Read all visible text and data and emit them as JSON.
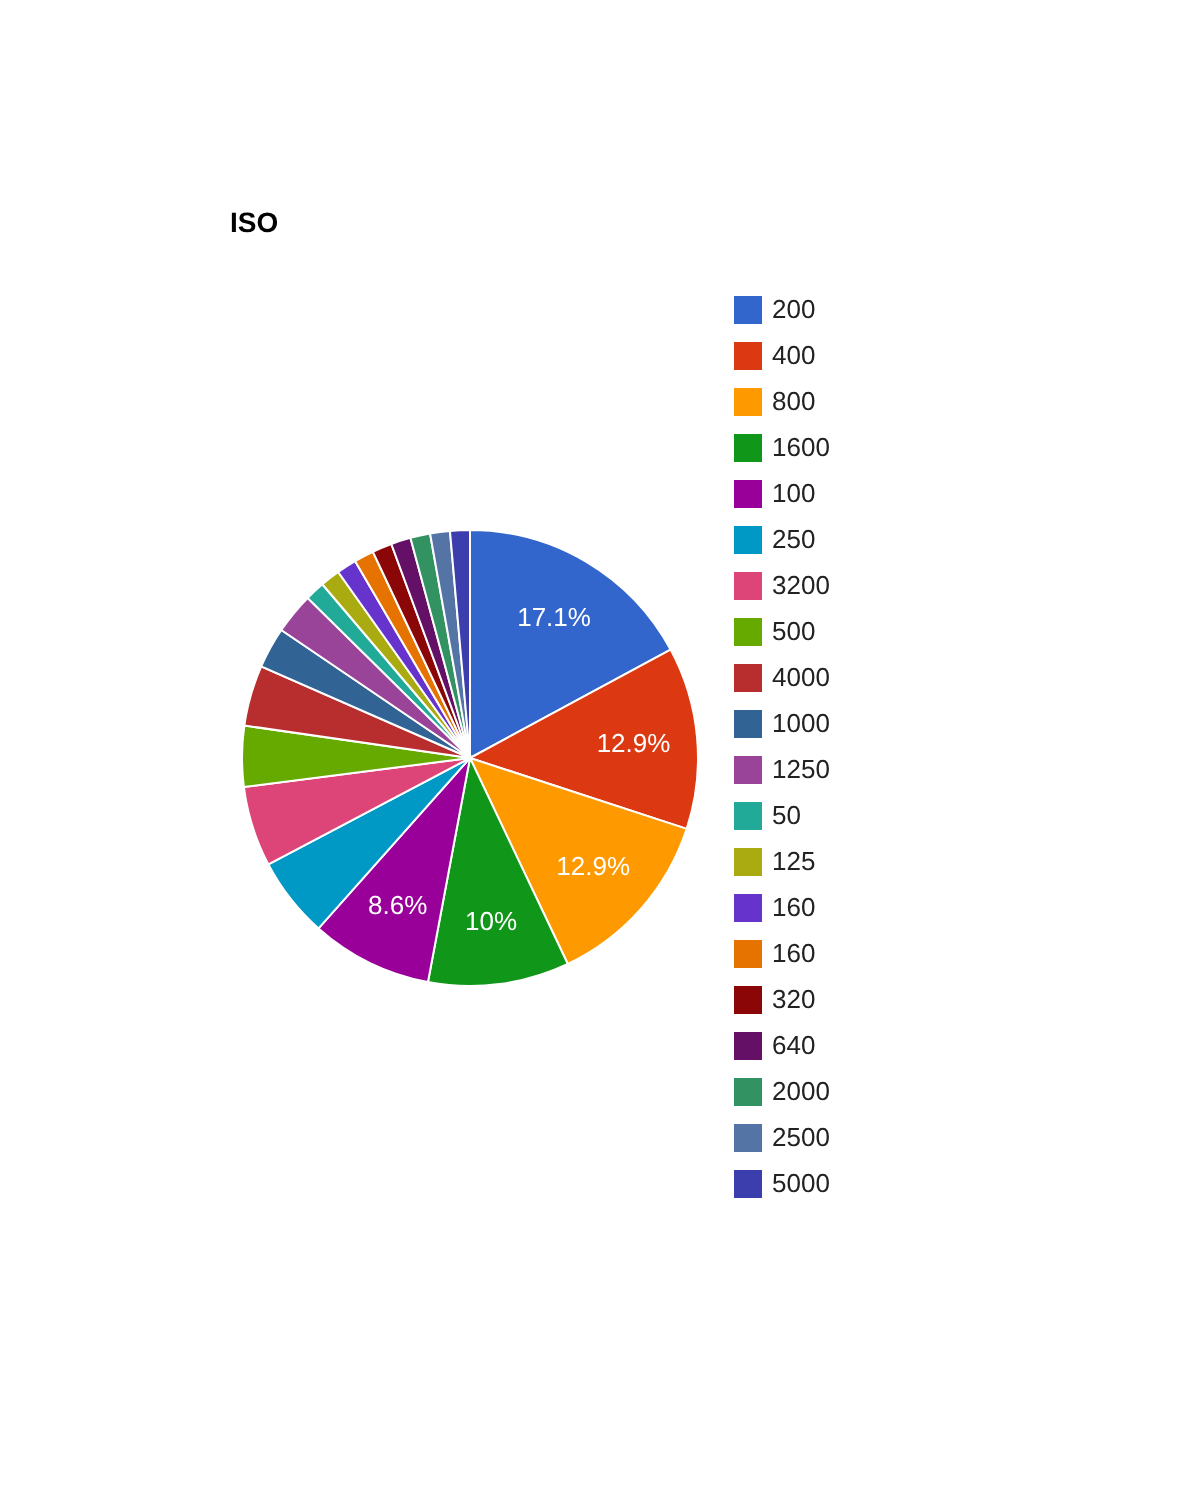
{
  "chart_data": {
    "type": "pie",
    "title": "ISO",
    "categories": [
      "200",
      "400",
      "800",
      "1600",
      "100",
      "250",
      "3200",
      "500",
      "4000",
      "1000",
      "1250",
      "50",
      "125",
      "160",
      "160",
      "320",
      "640",
      "2000",
      "2500",
      "5000"
    ],
    "values": [
      17.1,
      12.9,
      12.9,
      10,
      8.6,
      5.7,
      5.7,
      4.3,
      4.3,
      2.9,
      2.9,
      1.4,
      1.4,
      1.4,
      1.4,
      1.4,
      1.4,
      1.4,
      1.4,
      1.4
    ],
    "value_labels": [
      "17.1%",
      "12.9%",
      "12.9%",
      "10%",
      "8.6%",
      null,
      null,
      null,
      null,
      null,
      null,
      null,
      null,
      null,
      null,
      null,
      null,
      null,
      null,
      null
    ],
    "colors": [
      "#3366cc",
      "#dc3912",
      "#ff9900",
      "#109618",
      "#990099",
      "#0099c6",
      "#dd4477",
      "#66aa00",
      "#b82e2e",
      "#316395",
      "#994499",
      "#22aa99",
      "#aaaa11",
      "#6633cc",
      "#e67300",
      "#8b0707",
      "#651067",
      "#329262",
      "#5574a6",
      "#3b3eac"
    ],
    "legend": "right"
  }
}
